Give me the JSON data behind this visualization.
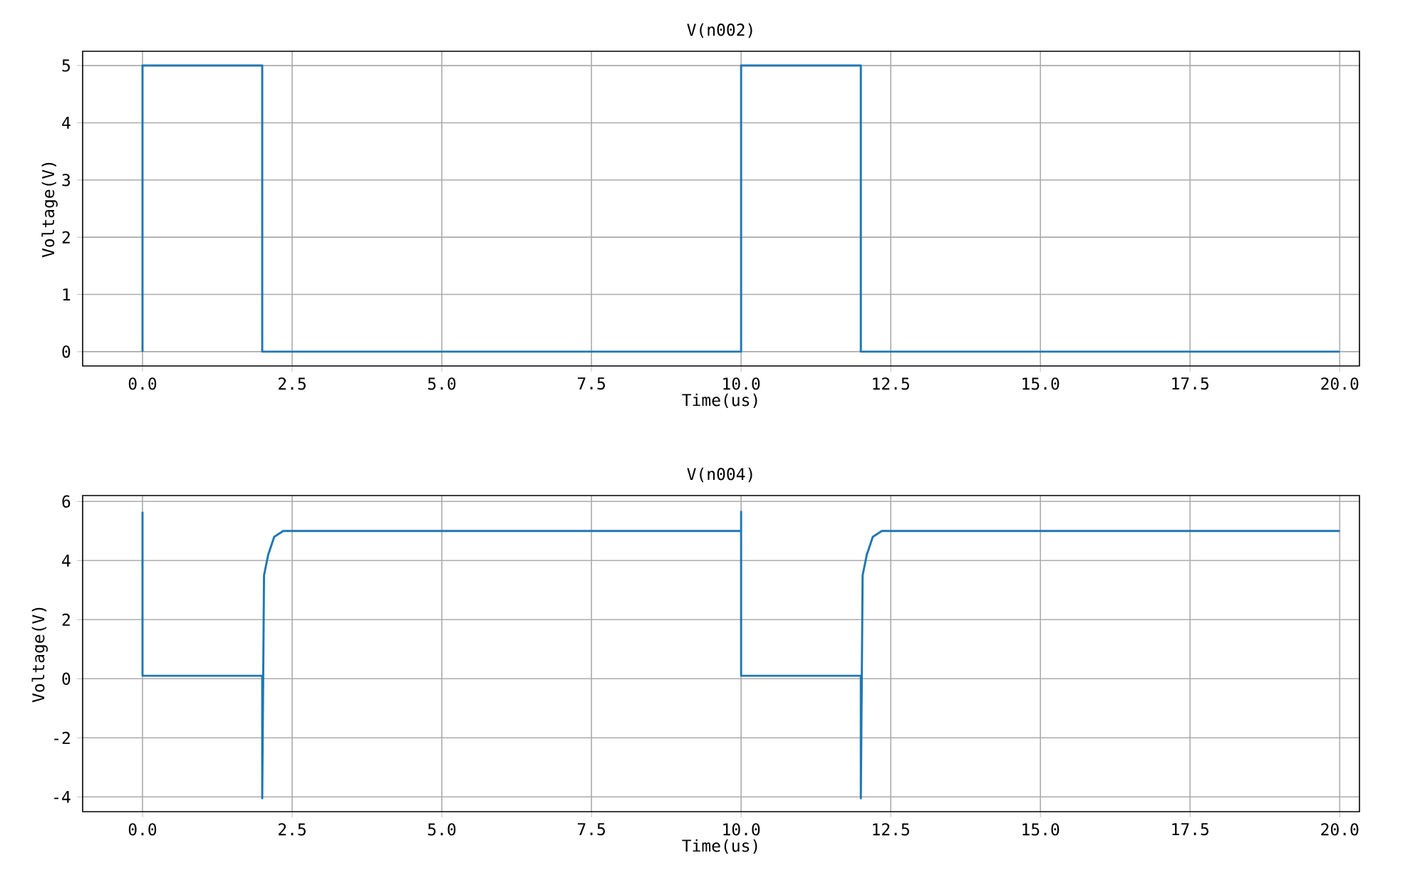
{
  "chart_data": [
    {
      "type": "line",
      "title": "V(n002)",
      "xlabel": "Time(us)",
      "ylabel": "Voltage(V)",
      "xlim": [
        -1,
        20.33
      ],
      "ylim": [
        -0.25,
        5.25
      ],
      "xticks": [
        {
          "value": 0,
          "label": "0.0"
        },
        {
          "value": 2.5,
          "label": "2.5"
        },
        {
          "value": 5,
          "label": "5.0"
        },
        {
          "value": 7.5,
          "label": "7.5"
        },
        {
          "value": 10,
          "label": "10.0"
        },
        {
          "value": 12.5,
          "label": "12.5"
        },
        {
          "value": 15,
          "label": "15.0"
        },
        {
          "value": 17.5,
          "label": "17.5"
        },
        {
          "value": 20,
          "label": "20.0"
        }
      ],
      "yticks": [
        0,
        1,
        2,
        3,
        4,
        5
      ],
      "grid": true,
      "series": [
        {
          "color": "#1f77b4",
          "x": [
            0,
            0,
            2,
            2,
            10,
            10,
            12,
            12,
            20
          ],
          "values": [
            0,
            5,
            5,
            0,
            0,
            5,
            5,
            0,
            0
          ]
        }
      ]
    },
    {
      "type": "line",
      "title": "V(n004)",
      "xlabel": "Time(us)",
      "ylabel": "Voltage(V)",
      "xlim": [
        -1,
        20.33
      ],
      "ylim": [
        -4.5,
        6.2
      ],
      "xticks": [
        {
          "value": 0,
          "label": "0.0"
        },
        {
          "value": 2.5,
          "label": "2.5"
        },
        {
          "value": 5,
          "label": "5.0"
        },
        {
          "value": 7.5,
          "label": "7.5"
        },
        {
          "value": 10,
          "label": "10.0"
        },
        {
          "value": 12.5,
          "label": "12.5"
        },
        {
          "value": 15,
          "label": "15.0"
        },
        {
          "value": 17.5,
          "label": "17.5"
        },
        {
          "value": 20,
          "label": "20.0"
        }
      ],
      "yticks": [
        -4,
        -2,
        0,
        2,
        4,
        6
      ],
      "grid": true,
      "series": [
        {
          "color": "#1f77b4",
          "x": [
            0,
            0,
            2,
            2,
            2.03,
            2.1,
            2.2,
            2.35,
            10,
            10,
            10,
            12,
            12,
            12.03,
            12.1,
            12.2,
            12.35,
            20
          ],
          "values": [
            5.65,
            0.1,
            0.1,
            -4.05,
            3.5,
            4.2,
            4.8,
            5.0,
            5.0,
            5.65,
            0.1,
            0.1,
            -4.05,
            3.5,
            4.2,
            4.8,
            5.0,
            5.0
          ]
        }
      ]
    }
  ]
}
